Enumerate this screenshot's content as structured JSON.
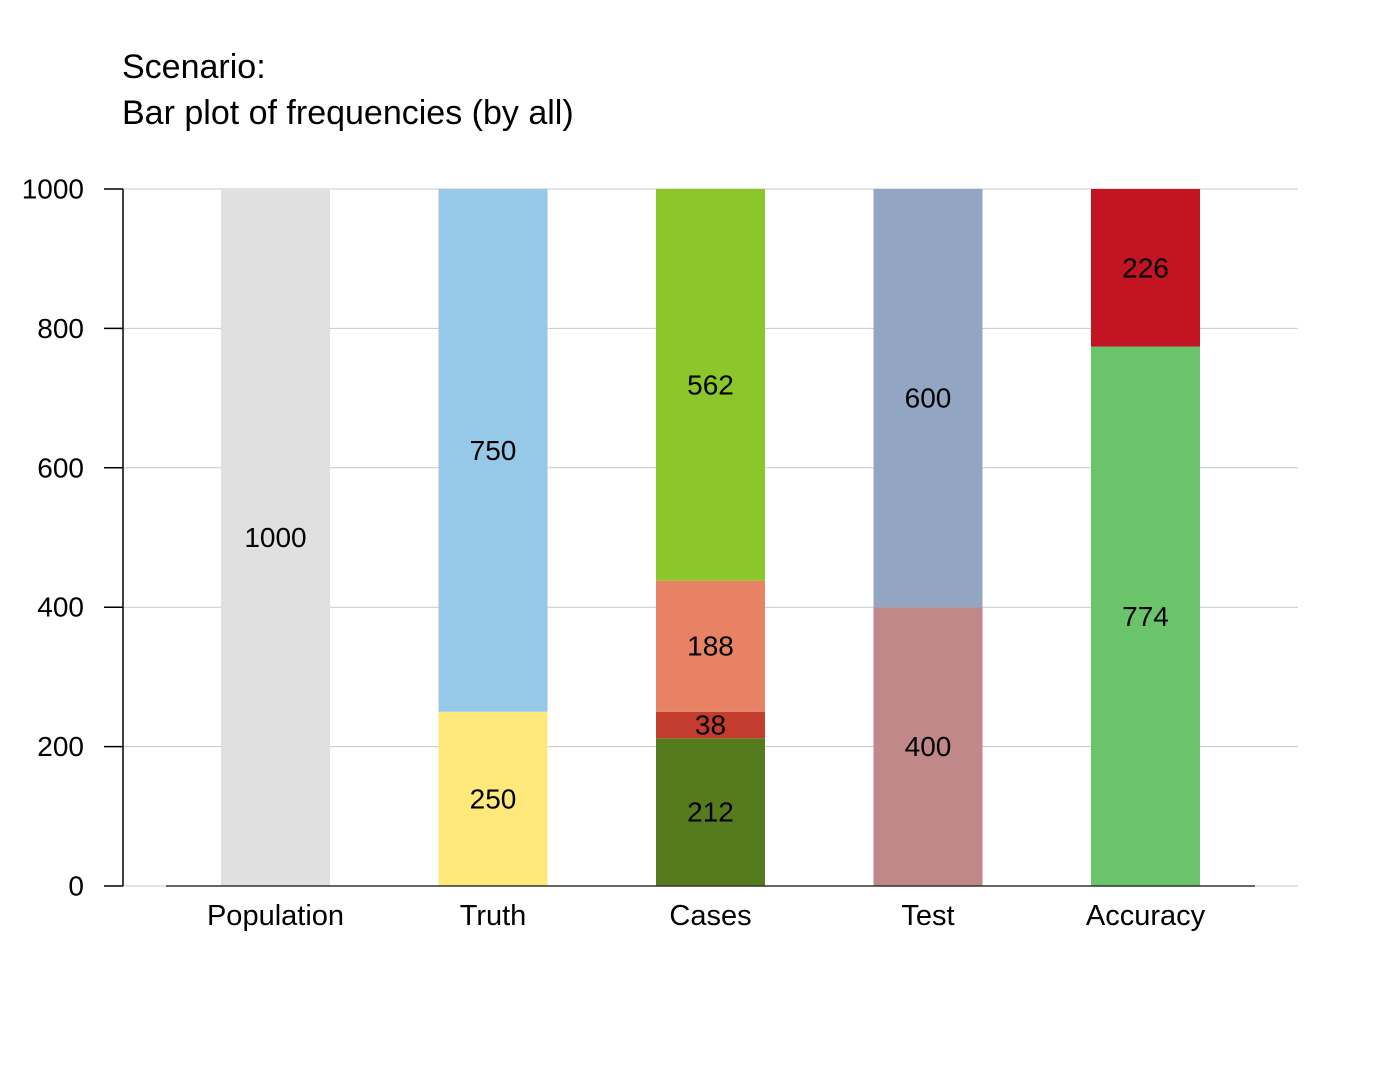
{
  "title_line1": "Scenario:",
  "title_line2": "Bar plot of frequencies (by all)",
  "chart_data": {
    "type": "bar",
    "stacked": true,
    "categories": [
      "Population",
      "Truth",
      "Cases",
      "Test",
      "Accuracy"
    ],
    "ylim": [
      0,
      1000
    ],
    "yticks": [
      0,
      200,
      400,
      600,
      800,
      1000
    ],
    "grid": true,
    "stacks": [
      {
        "category": "Population",
        "segments": [
          {
            "value": 1000,
            "label": "1000",
            "color": "#e0e0e0"
          }
        ]
      },
      {
        "category": "Truth",
        "segments": [
          {
            "value": 250,
            "label": "250",
            "color": "#ffe97a"
          },
          {
            "value": 750,
            "label": "750",
            "color": "#96c8e8"
          }
        ]
      },
      {
        "category": "Cases",
        "segments": [
          {
            "value": 212,
            "label": "212",
            "color": "#567b1e"
          },
          {
            "value": 38,
            "label": "38",
            "color": "#c43c2e"
          },
          {
            "value": 188,
            "label": "188",
            "color": "#e88264"
          },
          {
            "value": 562,
            "label": "562",
            "color": "#8bc62a"
          }
        ]
      },
      {
        "category": "Test",
        "segments": [
          {
            "value": 400,
            "label": "400",
            "color": "#c08888"
          },
          {
            "value": 600,
            "label": "600",
            "color": "#92a6c4"
          }
        ]
      },
      {
        "category": "Accuracy",
        "segments": [
          {
            "value": 774,
            "label": "774",
            "color": "#6ac46a"
          },
          {
            "value": 226,
            "label": "226",
            "color": "#c21422"
          }
        ]
      }
    ]
  }
}
